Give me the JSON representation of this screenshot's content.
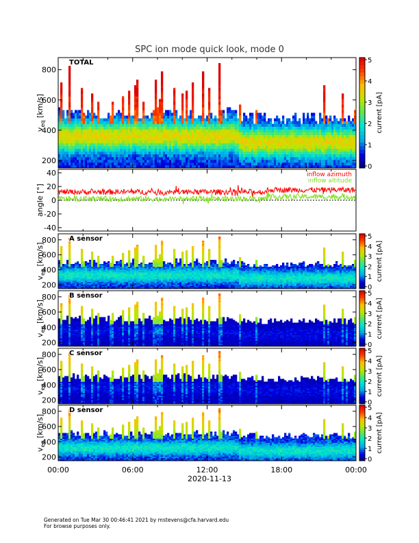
{
  "chart_data": {
    "type": "heatmap",
    "title": "SPC ion mode quick look, mode 0",
    "date_label": "2020-11-13",
    "x_tick_labels": [
      "00:00",
      "06:00",
      "12:00",
      "18:00",
      "00:00"
    ],
    "x_range_hours": [
      0,
      24
    ],
    "spectrogram_ylabel": "v",
    "spectrogram_ylabel_sub": "eq",
    "spectrogram_ylabel_unit": "[km/s]",
    "spectrogram_yrange": [
      150,
      880
    ],
    "spectrogram_yticks": [
      200,
      400,
      600,
      800
    ],
    "colorbar_label": "current [pA]",
    "colorbar_range": [
      0,
      5
    ],
    "colorbar_ticks": [
      "0",
      "1",
      "2",
      "3",
      "4",
      "5"
    ],
    "panels": [
      {
        "label": "TOTAL",
        "core_speed": 360,
        "intensity": "high"
      },
      {
        "label": "A sensor",
        "core_speed": 330,
        "intensity": "medium"
      },
      {
        "label": "B sensor",
        "core_speed": 350,
        "intensity": "low"
      },
      {
        "label": "C sensor",
        "core_speed": 360,
        "intensity": "low"
      },
      {
        "label": "D sensor",
        "core_speed": 320,
        "intensity": "medium"
      }
    ],
    "angle_panel": {
      "ylabel": "angle [°]",
      "yrange": [
        -45,
        45
      ],
      "yticks": [
        40,
        20,
        0,
        -20,
        -40
      ],
      "series": [
        {
          "name": "inflow azimuth",
          "color": "#ff0000",
          "mean": 12,
          "spread": 4
        },
        {
          "name": "inflow altitude",
          "color": "#7fdc1e",
          "mean": 2,
          "spread": 4
        }
      ]
    }
  },
  "footer": {
    "line1": "Generated on Tue Mar 30 00:46:41 2021 by mstevens@cfa.harvard.edu",
    "line2": "For browse purposes only."
  }
}
